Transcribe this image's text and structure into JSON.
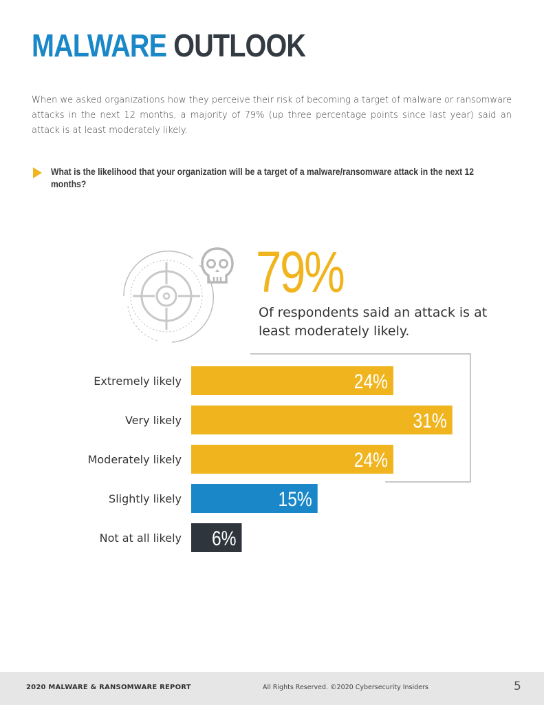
{
  "page": {
    "title_part1": "MALWARE",
    "title_part2": "OUTLOOK",
    "intro": "When we asked organizations how they perceive their risk of becoming a target of malware or ransomware attacks in the next 12 months, a majority of 79% (up three percentage points since last year) said an attack is at least moderately likely.",
    "question": "What is the likelihood that your organization will be a target of a malware/ransomware attack in the next 12 months?",
    "highlight_value": "79%",
    "highlight_text": "Of respondents said an attack is at least moderately likely."
  },
  "icons": [
    "target-crosshair-icon",
    "skull-icon",
    "question-arrow-icon"
  ],
  "colors": {
    "title_blue": "#1a87c8",
    "title_dark": "#333a42",
    "accent_yellow": "#f0b41f",
    "bar_blue": "#1a87c8",
    "bar_dark": "#2f353c"
  },
  "chart_data": {
    "type": "bar",
    "orientation": "horizontal",
    "categories": [
      "Extremely likely",
      "Very likely",
      "Moderately likely",
      "Slightly likely",
      "Not at all likely"
    ],
    "values": [
      24,
      31,
      24,
      15,
      6
    ],
    "value_labels": [
      "24%",
      "31%",
      "24%",
      "15%",
      "6%"
    ],
    "bar_colors": [
      "#f0b41f",
      "#f0b41f",
      "#f0b41f",
      "#1a87c8",
      "#2f353c"
    ],
    "unit": "%",
    "grid": false,
    "bracket_groups": [
      "Extremely likely",
      "Very likely",
      "Moderately likely"
    ]
  },
  "footer": {
    "report_title": "2020 MALWARE & RANSOMWARE REPORT",
    "rights": "All Rights Reserved.  ©2020 Cybersecurity Insiders",
    "page_number": "5"
  }
}
